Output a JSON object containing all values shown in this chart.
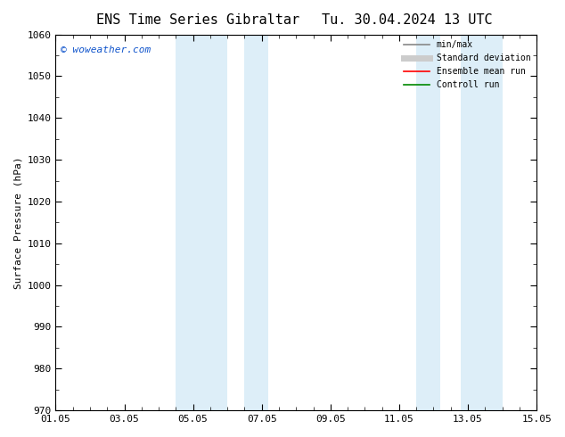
{
  "title_left": "ENS Time Series Gibraltar",
  "title_right": "Tu. 30.04.2024 13 UTC",
  "ylabel": "Surface Pressure (hPa)",
  "ylim": [
    970,
    1060
  ],
  "yticks": [
    970,
    980,
    990,
    1000,
    1010,
    1020,
    1030,
    1040,
    1050,
    1060
  ],
  "xtick_positions": [
    0,
    2,
    4,
    6,
    8,
    10,
    12,
    14
  ],
  "xtick_labels": [
    "01.05",
    "03.05",
    "05.05",
    "07.05",
    "09.05",
    "11.05",
    "13.05",
    "15.05"
  ],
  "watermark": "© woweather.com",
  "watermark_color": "#1155cc",
  "background_color": "#ffffff",
  "plot_bg_color": "#ffffff",
  "shaded_regions": [
    {
      "x_start": 3.5,
      "x_end": 5.0
    },
    {
      "x_start": 5.5,
      "x_end": 6.2
    },
    {
      "x_start": 10.5,
      "x_end": 11.2
    },
    {
      "x_start": 11.8,
      "x_end": 13.0
    }
  ],
  "shaded_color": "#ddeef8",
  "legend_entries": [
    {
      "label": "min/max",
      "color": "#888888",
      "lw": 1.2,
      "style": "solid"
    },
    {
      "label": "Standard deviation",
      "color": "#cccccc",
      "lw": 5,
      "style": "solid"
    },
    {
      "label": "Ensemble mean run",
      "color": "#ff0000",
      "lw": 1.2,
      "style": "solid"
    },
    {
      "label": "Controll run",
      "color": "#008800",
      "lw": 1.2,
      "style": "solid"
    }
  ],
  "title_fontsize": 11,
  "tick_label_fontsize": 8,
  "ylabel_fontsize": 8,
  "watermark_fontsize": 8,
  "legend_fontsize": 7
}
